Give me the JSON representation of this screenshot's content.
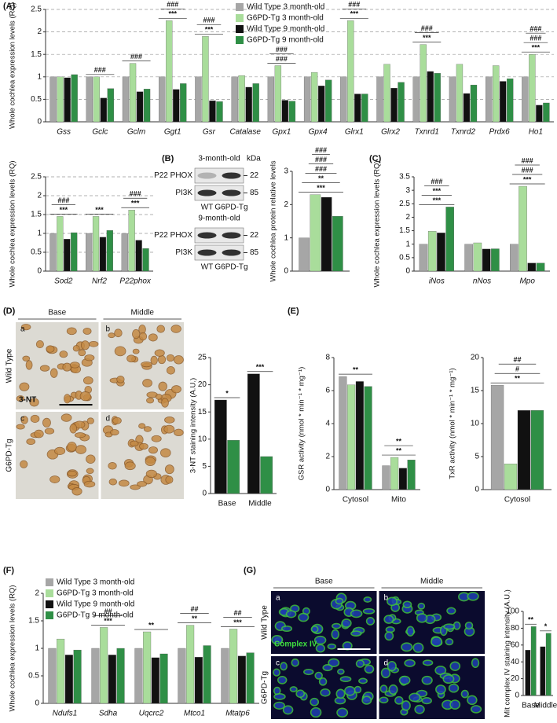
{
  "chart_data": [
    {
      "type": "bar",
      "panel": "(A)",
      "ylabel": "Whole cochlea expression levels (RQ)",
      "ylim": [
        0,
        2.5
      ],
      "yticks": [
        0,
        0.5,
        1,
        1.5,
        2,
        2.5
      ],
      "grid": true,
      "categories": [
        "Gss",
        "Gclc",
        "Gclm",
        "Ggt1",
        "Gsr",
        "Catalase",
        "Gpx1",
        "Gpx4",
        "Glrx1",
        "Glrx2",
        "Txnrd1",
        "Txnrd2",
        "Prdx6",
        "Ho1"
      ],
      "series": [
        {
          "name": "Wild Type 3 month-old",
          "color": "#a6a6a6",
          "values": [
            1,
            1,
            1,
            1,
            1,
            1,
            1,
            1,
            1,
            1,
            1,
            1,
            1,
            1
          ]
        },
        {
          "name": "G6PD-Tg 3 month-old",
          "color": "#a9dd9b",
          "values": [
            1,
            1,
            1.3,
            2.25,
            1.9,
            1.03,
            1.25,
            1.1,
            2.25,
            1.28,
            1.72,
            1.28,
            1.25,
            1.5
          ]
        },
        {
          "name": "Wild Type 9 month-old",
          "color": "#111111",
          "values": [
            0.98,
            0.53,
            0.67,
            0.72,
            0.47,
            0.77,
            0.48,
            0.8,
            0.62,
            0.75,
            1.12,
            0.63,
            0.9,
            0.37
          ]
        },
        {
          "name": "G6PD-Tg 9 month-old",
          "color": "#2f8f46",
          "values": [
            1.05,
            0.74,
            0.73,
            0.85,
            0.45,
            0.85,
            0.46,
            0.93,
            0.62,
            0.88,
            1.08,
            0.82,
            0.96,
            0.42
          ]
        }
      ],
      "annotations": [
        {
          "category": "Gclc",
          "text": "###"
        },
        {
          "category": "Gclm",
          "text": "###"
        },
        {
          "category": "Ggt1",
          "text": "***"
        },
        {
          "category": "Ggt1",
          "text": "###"
        },
        {
          "category": "Gsr",
          "text": "***"
        },
        {
          "category": "Gsr",
          "text": "###"
        },
        {
          "category": "Gpx1",
          "text": "###"
        },
        {
          "category": "Gpx1",
          "text": "###"
        },
        {
          "category": "Glrx1",
          "text": "***"
        },
        {
          "category": "Glrx1",
          "text": "###"
        },
        {
          "category": "Txnrd1",
          "text": "***"
        },
        {
          "category": "Txnrd1",
          "text": "###"
        },
        {
          "category": "Ho1",
          "text": "***"
        },
        {
          "category": "Ho1",
          "text": "###"
        },
        {
          "category": "Ho1",
          "text": "###"
        }
      ]
    },
    {
      "type": "bar",
      "ylabel": "Whole cochlea expression levels (RQ)",
      "ylim": [
        0,
        2.5
      ],
      "yticks": [
        0,
        0.5,
        1,
        1.5,
        2,
        2.5
      ],
      "grid": true,
      "categories": [
        "Sod2",
        "Nrf2",
        "P22phox"
      ],
      "series": [
        {
          "color": "#a6a6a6",
          "values": [
            1,
            1,
            1
          ]
        },
        {
          "color": "#a9dd9b",
          "values": [
            1.45,
            1.45,
            1.62
          ]
        },
        {
          "color": "#111111",
          "values": [
            0.85,
            0.9,
            0.82
          ]
        },
        {
          "color": "#2f8f46",
          "values": [
            1.02,
            1.08,
            0.6
          ]
        }
      ],
      "annotations": [
        {
          "category": "Sod2",
          "text": "***"
        },
        {
          "category": "Sod2",
          "text": "###"
        },
        {
          "category": "Nrf2",
          "text": "***"
        },
        {
          "category": "P22phox",
          "text": "***"
        },
        {
          "category": "P22phox",
          "text": "###"
        }
      ]
    },
    {
      "type": "bar",
      "panel": "(B)",
      "ylabel": "Whole cochlea protein relative levels",
      "ylim": [
        0,
        3
      ],
      "yticks": [
        0,
        1,
        2,
        3
      ],
      "grid": false,
      "categories": [
        null
      ],
      "series": [
        {
          "color": "#a6a6a6",
          "values": [
            1
          ]
        },
        {
          "color": "#a9dd9b",
          "values": [
            2.3
          ]
        },
        {
          "color": "#111111",
          "values": [
            2.22
          ]
        },
        {
          "color": "#2f8f46",
          "values": [
            1.65
          ]
        }
      ],
      "annotations": [
        {
          "category": null,
          "text": "***"
        },
        {
          "category": null,
          "text": "**"
        },
        {
          "category": null,
          "text": "###"
        },
        {
          "category": null,
          "text": "###"
        },
        {
          "category": null,
          "text": "###"
        }
      ]
    },
    {
      "type": "bar",
      "panel": "(C)",
      "ylabel": "Whole cochlea expression levels (RQ)",
      "ylim": [
        0,
        3.5
      ],
      "yticks": [
        0,
        0.5,
        1,
        1.5,
        2,
        2.5,
        3,
        3.5
      ],
      "grid": false,
      "categories": [
        "iNos",
        "nNos",
        "Mpo"
      ],
      "series": [
        {
          "color": "#a6a6a6",
          "values": [
            1,
            1,
            1
          ]
        },
        {
          "color": "#a9dd9b",
          "values": [
            1.48,
            1.05,
            3.15
          ]
        },
        {
          "color": "#111111",
          "values": [
            1.42,
            0.82,
            0.3
          ]
        },
        {
          "color": "#2f8f46",
          "values": [
            2.38,
            0.83,
            0.3
          ]
        }
      ],
      "annotations": [
        {
          "category": "iNos",
          "text": "***"
        },
        {
          "category": "iNos",
          "text": "***"
        },
        {
          "category": "iNos",
          "text": "###"
        },
        {
          "category": "Mpo",
          "text": "***"
        },
        {
          "category": "Mpo",
          "text": "###"
        },
        {
          "category": "Mpo",
          "text": "###"
        }
      ]
    },
    {
      "type": "bar",
      "panel": "(D)",
      "ylabel": "3-NT staining intensity (A.U.)",
      "ylim": [
        0,
        25
      ],
      "yticks": [
        0,
        5,
        10,
        15,
        20,
        25
      ],
      "grid": false,
      "categories": [
        "Base",
        "Middle"
      ],
      "series": [
        {
          "color": "#111111",
          "values": [
            17.2,
            22
          ]
        },
        {
          "color": "#2f8f46",
          "values": [
            9.8,
            6.8
          ]
        }
      ],
      "annotations": [
        {
          "category": "Base",
          "text": "*"
        },
        {
          "category": "Middle",
          "text": "***"
        }
      ]
    },
    {
      "type": "bar",
      "panel": "(E)",
      "ylabel": "GSR activity (nmol * min⁻¹ * mg⁻¹)",
      "ylim": [
        0,
        8
      ],
      "yticks": [
        0,
        2,
        4,
        6,
        8
      ],
      "grid": false,
      "categories": [
        "Cytosol",
        "Mito"
      ],
      "series": [
        {
          "color": "#a6a6a6",
          "values": [
            6.85,
            1.45
          ]
        },
        {
          "color": "#a9dd9b",
          "values": [
            6.35,
            1.95
          ]
        },
        {
          "color": "#111111",
          "values": [
            6.55,
            1.3
          ]
        },
        {
          "color": "#2f8f46",
          "values": [
            6.25,
            1.8
          ]
        }
      ],
      "annotations": [
        {
          "category": "Cytosol",
          "text": "**"
        },
        {
          "category": "Mito",
          "text": "**"
        },
        {
          "category": "Mito",
          "text": "**"
        }
      ]
    },
    {
      "type": "bar",
      "ylabel": "TxR activity (nmol * min⁻¹ * mg⁻¹)",
      "ylim": [
        0,
        20
      ],
      "yticks": [
        0,
        5,
        10,
        15,
        20
      ],
      "grid": false,
      "categories": [
        "Cytosol"
      ],
      "series": [
        {
          "color": "#a6a6a6",
          "values": [
            15.8
          ]
        },
        {
          "color": "#a9dd9b",
          "values": [
            3.9
          ]
        },
        {
          "color": "#111111",
          "values": [
            12
          ]
        },
        {
          "color": "#2f8f46",
          "values": [
            12
          ]
        }
      ],
      "annotations": [
        {
          "category": "Cytosol",
          "text": "**"
        },
        {
          "category": "Cytosol",
          "text": "#"
        },
        {
          "category": "Cytosol",
          "text": "##"
        }
      ]
    },
    {
      "type": "bar",
      "panel": "(F)",
      "ylabel": "Whole cochlea expression levels (RQ)",
      "ylim": [
        0,
        2
      ],
      "yticks": [
        0,
        0.5,
        1,
        1.5,
        2
      ],
      "grid": false,
      "categories": [
        "Ndufs1",
        "Sdha",
        "Uqcrc2",
        "Mtco1",
        "Mtatp6"
      ],
      "series": [
        {
          "name": "Wild Type 3 month-old",
          "color": "#a6a6a6",
          "values": [
            1,
            1,
            1,
            1,
            1
          ]
        },
        {
          "name": "G6PD-Tg 3 month-old",
          "color": "#a9dd9b",
          "values": [
            1.17,
            1.38,
            1.3,
            1.42,
            1.35
          ]
        },
        {
          "name": "Wild Type 9 month-old",
          "color": "#111111",
          "values": [
            0.88,
            0.88,
            0.83,
            0.84,
            0.86
          ]
        },
        {
          "name": "G6PD-Tg 9 month-old",
          "color": "#2f8f46",
          "values": [
            0.97,
            1,
            0.9,
            1.05,
            0.92
          ]
        }
      ],
      "annotations": [
        {
          "category": "Sdha",
          "text": "***"
        },
        {
          "category": "Sdha",
          "text": "##"
        },
        {
          "category": "Uqcrc2",
          "text": "**"
        },
        {
          "category": "Mtco1",
          "text": "**"
        },
        {
          "category": "Mtco1",
          "text": "##"
        },
        {
          "category": "Mtatp6",
          "text": "***"
        },
        {
          "category": "Mtatp6",
          "text": "##"
        }
      ]
    },
    {
      "type": "bar",
      "panel": "(G)",
      "ylabel": "Mit complex IV staining intensity (A.U.)",
      "ylim": [
        0,
        100
      ],
      "yticks": [
        0,
        20,
        40,
        60,
        80,
        100
      ],
      "grid": false,
      "categories": [
        "Base",
        "Middle"
      ],
      "series": [
        {
          "color": "#111111",
          "values": [
            54,
            58
          ]
        },
        {
          "color": "#2f8f46",
          "values": [
            82,
            74
          ]
        }
      ],
      "annotations": [
        {
          "category": "Base",
          "text": "**"
        },
        {
          "category": "Middle",
          "text": "*"
        }
      ]
    }
  ],
  "blots": {
    "unit": "kDa",
    "panels": [
      {
        "title": "3-month-old",
        "rows": [
          {
            "label": "P22 PHOX",
            "kda": 22
          },
          {
            "label": "PI3K",
            "kda": 85
          }
        ],
        "lanes": [
          "WT",
          "G6PD-Tg"
        ]
      },
      {
        "title": "9-month-old",
        "rows": [
          {
            "label": "P22 PHOX",
            "kda": 22
          },
          {
            "label": "PI3K",
            "kda": 85
          }
        ],
        "lanes": [
          "WT",
          "G6PD-Tg"
        ]
      }
    ]
  },
  "micrographs": [
    {
      "columns": [
        "Base",
        "Middle"
      ],
      "rows": [
        "Wild Type",
        "G6PD-Tg"
      ],
      "letters": [
        "a",
        "b",
        "c",
        "d"
      ],
      "stain": "3-NT"
    },
    {
      "columns": [
        "Base",
        "Middle"
      ],
      "rows": [
        "Wild Type",
        "G6PD-Tg"
      ],
      "letters": [
        "a",
        "b",
        "c",
        "d"
      ],
      "stain": "Complex IV"
    }
  ]
}
